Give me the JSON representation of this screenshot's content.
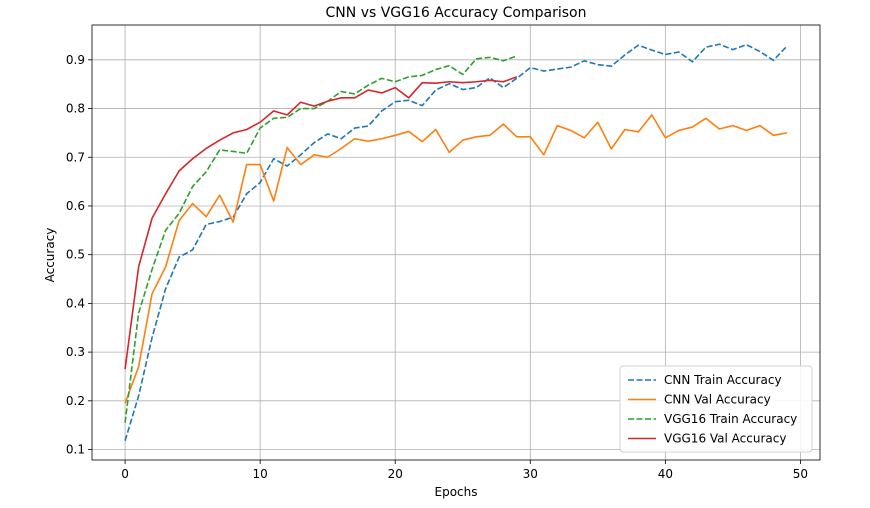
{
  "chart_data": {
    "type": "line",
    "title": "CNN vs VGG16 Accuracy Comparison",
    "xlabel": "Epochs",
    "ylabel": "Accuracy",
    "xlim": [
      -2.45,
      51.45
    ],
    "ylim": [
      0.0785,
      0.9715
    ],
    "xticks": [
      0,
      10,
      20,
      30,
      40,
      50
    ],
    "yticks": [
      0.1,
      0.2,
      0.3,
      0.4,
      0.5,
      0.6,
      0.7,
      0.8,
      0.9
    ],
    "xtick_labels": [
      "0",
      "10",
      "20",
      "30",
      "40",
      "50"
    ],
    "ytick_labels": [
      "0.1",
      "0.2",
      "0.3",
      "0.4",
      "0.5",
      "0.6",
      "0.7",
      "0.8",
      "0.9"
    ],
    "grid": true,
    "legend_position": "lower-right",
    "series": [
      {
        "name": "CNN Train Accuracy",
        "color": "#1f77b4",
        "style": "dashed",
        "x": [
          0,
          1,
          2,
          3,
          4,
          5,
          6,
          7,
          8,
          9,
          10,
          11,
          12,
          13,
          14,
          15,
          16,
          17,
          18,
          19,
          20,
          21,
          22,
          23,
          24,
          25,
          26,
          27,
          28,
          29,
          30,
          31,
          32,
          33,
          34,
          35,
          36,
          37,
          38,
          39,
          40,
          41,
          42,
          43,
          44,
          45,
          46,
          47,
          48,
          49
        ],
        "values": [
          0.118,
          0.21,
          0.33,
          0.43,
          0.495,
          0.51,
          0.562,
          0.568,
          0.577,
          0.625,
          0.648,
          0.697,
          0.682,
          0.705,
          0.73,
          0.748,
          0.738,
          0.76,
          0.764,
          0.795,
          0.814,
          0.817,
          0.806,
          0.838,
          0.851,
          0.839,
          0.843,
          0.863,
          0.843,
          0.862,
          0.884,
          0.877,
          0.881,
          0.885,
          0.898,
          0.89,
          0.887,
          0.91,
          0.93,
          0.92,
          0.911,
          0.916,
          0.896,
          0.926,
          0.932,
          0.921,
          0.931,
          0.917,
          0.899,
          0.928
        ]
      },
      {
        "name": "CNN Val Accuracy",
        "color": "#ff7f0e",
        "style": "solid",
        "x": [
          0,
          1,
          2,
          3,
          4,
          5,
          6,
          7,
          8,
          9,
          10,
          11,
          12,
          13,
          14,
          15,
          16,
          17,
          18,
          19,
          20,
          21,
          22,
          23,
          24,
          25,
          26,
          27,
          28,
          29,
          30,
          31,
          32,
          33,
          34,
          35,
          36,
          37,
          38,
          39,
          40,
          41,
          42,
          43,
          44,
          45,
          46,
          47,
          48,
          49
        ],
        "values": [
          0.195,
          0.27,
          0.42,
          0.475,
          0.57,
          0.605,
          0.578,
          0.622,
          0.567,
          0.685,
          0.685,
          0.61,
          0.72,
          0.685,
          0.705,
          0.7,
          0.718,
          0.738,
          0.733,
          0.738,
          0.745,
          0.753,
          0.732,
          0.757,
          0.71,
          0.735,
          0.742,
          0.745,
          0.768,
          0.742,
          0.742,
          0.705,
          0.765,
          0.755,
          0.74,
          0.772,
          0.717,
          0.757,
          0.752,
          0.787,
          0.74,
          0.755,
          0.762,
          0.78,
          0.758,
          0.765,
          0.755,
          0.765,
          0.745,
          0.75
        ]
      },
      {
        "name": "VGG16 Train Accuracy",
        "color": "#2ca02c",
        "style": "dashed",
        "x": [
          0,
          1,
          2,
          3,
          4,
          5,
          6,
          7,
          8,
          9,
          10,
          11,
          12,
          13,
          14,
          15,
          16,
          17,
          18,
          19,
          20,
          21,
          22,
          23,
          24,
          25,
          26,
          27,
          28,
          29
        ],
        "values": [
          0.155,
          0.38,
          0.47,
          0.55,
          0.585,
          0.64,
          0.67,
          0.715,
          0.712,
          0.708,
          0.76,
          0.78,
          0.782,
          0.8,
          0.8,
          0.815,
          0.835,
          0.83,
          0.848,
          0.862,
          0.855,
          0.865,
          0.868,
          0.88,
          0.888,
          0.87,
          0.902,
          0.905,
          0.898,
          0.908
        ]
      },
      {
        "name": "VGG16 Val Accuracy",
        "color": "#d62728",
        "style": "solid",
        "x": [
          0,
          1,
          2,
          3,
          4,
          5,
          6,
          7,
          8,
          9,
          10,
          11,
          12,
          13,
          14,
          15,
          16,
          17,
          18,
          19,
          20,
          21,
          22,
          23,
          24,
          25,
          26,
          27,
          28,
          29
        ],
        "values": [
          0.265,
          0.475,
          0.575,
          0.625,
          0.672,
          0.697,
          0.718,
          0.735,
          0.75,
          0.757,
          0.772,
          0.795,
          0.787,
          0.813,
          0.805,
          0.815,
          0.822,
          0.822,
          0.838,
          0.832,
          0.843,
          0.822,
          0.853,
          0.852,
          0.855,
          0.853,
          0.855,
          0.858,
          0.855,
          0.865
        ]
      }
    ]
  }
}
